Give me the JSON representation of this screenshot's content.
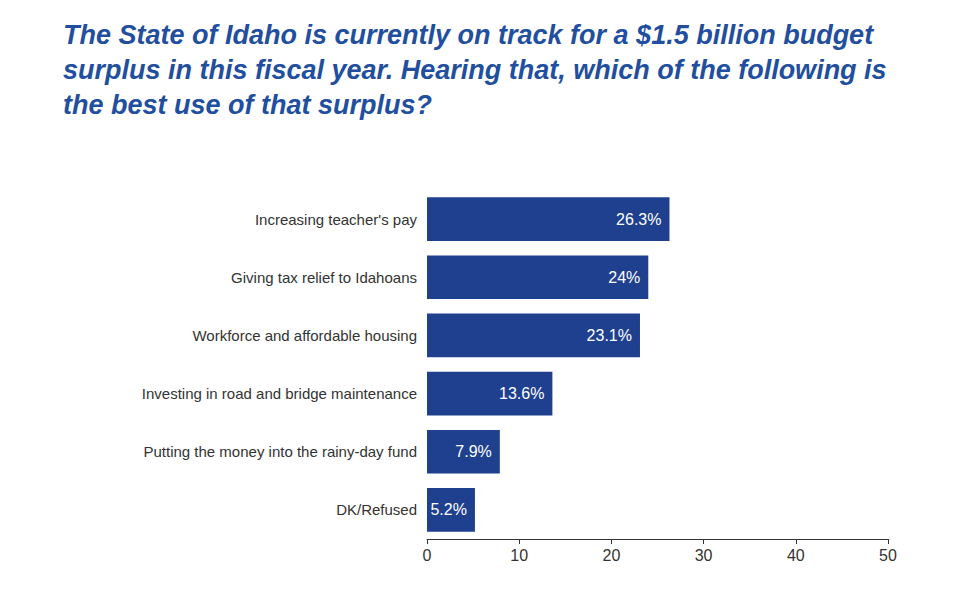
{
  "chart_data": {
    "type": "bar",
    "orientation": "horizontal",
    "title": "The State of Idaho is currently on track for a $1.5 billion budget surplus in this fiscal year. Hearing that, which of the following is the best use of that surplus?",
    "categories": [
      "Increasing teacher's pay",
      "Giving tax relief to Idahoans",
      "Workforce and affordable housing",
      "Investing in road and bridge maintenance",
      "Putting the money into the rainy-day fund",
      "DK/Refused"
    ],
    "values": [
      26.3,
      24,
      23.1,
      13.6,
      7.9,
      5.2
    ],
    "value_labels": [
      "26.3%",
      "24%",
      "23.1%",
      "13.6%",
      "7.9%",
      "5.2%"
    ],
    "color": "#1f3f8f",
    "xlim": [
      0,
      50
    ],
    "xticks": [
      0,
      10,
      20,
      30,
      40,
      50
    ],
    "data_labels": true,
    "grid": false
  }
}
